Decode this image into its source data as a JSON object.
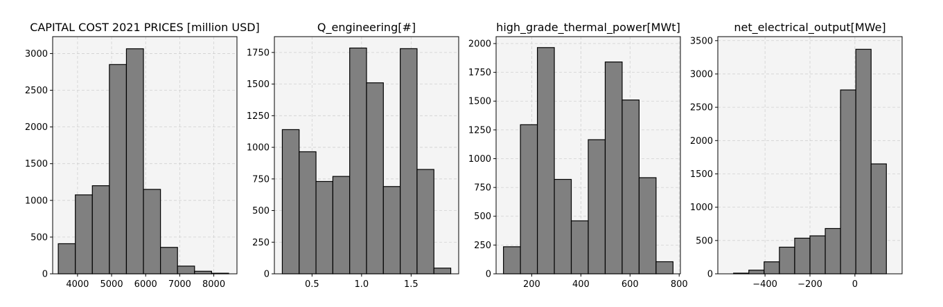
{
  "figure": {
    "background": "#ffffff",
    "panel_background": "#f4f4f4",
    "bar_fill": "#808080",
    "bar_edge": "#000000",
    "grid_color": "#d0d0d0"
  },
  "chart_data": [
    {
      "type": "bar",
      "title": "CAPITAL COST 2021 PRICES [million USD]",
      "xlabel": "",
      "ylabel": "",
      "bin_edges": [
        3435,
        3935,
        4435,
        4935,
        5435,
        5935,
        6435,
        6935,
        7435,
        7935,
        8435
      ],
      "values": [
        410,
        1075,
        1200,
        2850,
        3065,
        1150,
        360,
        105,
        35,
        8
      ],
      "xlim": [
        3270,
        8680
      ],
      "ylim": [
        0,
        3230
      ],
      "xticks": [
        4000,
        5000,
        6000,
        7000,
        8000
      ],
      "xtick_labels": [
        "4000",
        "5000",
        "6000",
        "7000",
        "8000"
      ],
      "yticks": [
        0,
        500,
        1000,
        1500,
        2000,
        2500,
        3000
      ],
      "ytick_labels": [
        "0",
        "500",
        "1000",
        "1500",
        "2000",
        "2500",
        "3000"
      ],
      "grid": true
    },
    {
      "type": "bar",
      "title": "Q_engineering[#]",
      "xlabel": "",
      "ylabel": "",
      "bin_edges": [
        0.2,
        0.37,
        0.54,
        0.71,
        0.88,
        1.05,
        1.22,
        1.39,
        1.56,
        1.73,
        1.9
      ],
      "values": [
        1140,
        965,
        730,
        770,
        1785,
        1510,
        690,
        1780,
        825,
        45
      ],
      "xlim": [
        0.12,
        1.98
      ],
      "ylim": [
        0,
        1875
      ],
      "xticks": [
        0.5,
        1.0,
        1.5
      ],
      "xtick_labels": [
        "0.5",
        "1.0",
        "1.5"
      ],
      "yticks": [
        0,
        250,
        500,
        750,
        1000,
        1250,
        1500,
        1750
      ],
      "ytick_labels": [
        "0",
        "250",
        "500",
        "750",
        "1000",
        "1250",
        "1500",
        "1750"
      ],
      "grid": true
    },
    {
      "type": "bar",
      "title": "high_grade_thermal_power[MWt]",
      "xlabel": "",
      "ylabel": "",
      "bin_edges": [
        85,
        154,
        223,
        292,
        361,
        430,
        499,
        568,
        637,
        706,
        775
      ],
      "values": [
        235,
        1295,
        1965,
        820,
        460,
        1165,
        1840,
        1510,
        835,
        105
      ],
      "xlim": [
        55,
        805
      ],
      "ylim": [
        0,
        2060
      ],
      "xticks": [
        200,
        400,
        600,
        800
      ],
      "xtick_labels": [
        "200",
        "400",
        "600",
        "800"
      ],
      "yticks": [
        0,
        250,
        500,
        750,
        1000,
        1250,
        1500,
        1750,
        2000
      ],
      "ytick_labels": [
        "0",
        "250",
        "500",
        "750",
        "1000",
        "1250",
        "1500",
        "1750",
        "2000"
      ],
      "grid": true
    },
    {
      "type": "bar",
      "title": "net_electrical_output[MWe]",
      "xlabel": "",
      "ylabel": "",
      "bin_edges": [
        -540,
        -472,
        -404,
        -336,
        -268,
        -200,
        -132,
        -64,
        4,
        72,
        140
      ],
      "values": [
        10,
        55,
        180,
        400,
        535,
        570,
        680,
        2760,
        3370,
        1650
      ],
      "xlim": [
        -610,
        210
      ],
      "ylim": [
        0,
        3560
      ],
      "xticks": [
        -400,
        -200,
        0
      ],
      "xtick_labels": [
        "−400",
        "−200",
        "0"
      ],
      "yticks": [
        0,
        500,
        1000,
        1500,
        2000,
        2500,
        3000,
        3500
      ],
      "ytick_labels": [
        "0",
        "500",
        "1000",
        "1500",
        "2000",
        "2500",
        "3000",
        "3500"
      ],
      "grid": true
    }
  ]
}
